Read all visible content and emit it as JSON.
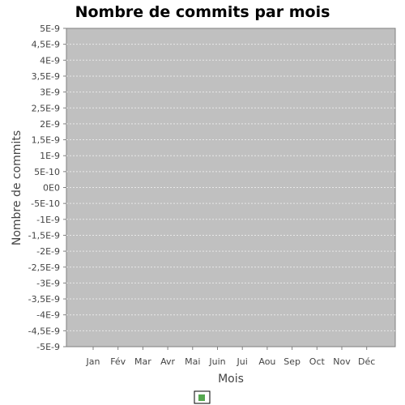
{
  "chart_data": {
    "type": "bar",
    "title": "Nombre de commits par mois",
    "xlabel": "Mois",
    "ylabel": "Nombre de commits",
    "categories": [
      "Jan",
      "Fév",
      "Mar",
      "Avr",
      "Mai",
      "Juin",
      "Jui",
      "Aou",
      "Sep",
      "Oct",
      "Nov",
      "Déc"
    ],
    "series": [
      {
        "values": [
          0,
          0,
          0,
          0,
          0,
          0,
          0,
          0,
          0,
          0,
          0,
          0
        ]
      }
    ],
    "ylim": [
      -5e-09,
      5e-09
    ],
    "ytick_values": [
      5e-09,
      4.5e-09,
      4e-09,
      3.5e-09,
      3e-09,
      2.5e-09,
      2e-09,
      1.5e-09,
      1e-09,
      5e-10,
      0,
      -5e-10,
      -1e-09,
      -1.5e-09,
      -2e-09,
      -2.5e-09,
      -3e-09,
      -3.5e-09,
      -4e-09,
      -4.5e-09,
      -5e-09
    ],
    "ytick_labels": [
      "5E-9",
      "4,5E-9",
      "4E-9",
      "3,5E-9",
      "3E-9",
      "2,5E-9",
      "2E-9",
      "1,5E-9",
      "1E-9",
      "5E-10",
      "0E0",
      "-5E-10",
      "-1E-9",
      "-1,5E-9",
      "-2E-9",
      "-2,5E-9",
      "-3E-9",
      "-3,5E-9",
      "-4E-9",
      "-4,5E-9",
      "-5E-9"
    ],
    "grid": true,
    "legend": "bottom",
    "colors": {
      "plot_background": "#c0c0c0",
      "gridline": "#e8e8e8",
      "series": "#55a84f"
    }
  }
}
